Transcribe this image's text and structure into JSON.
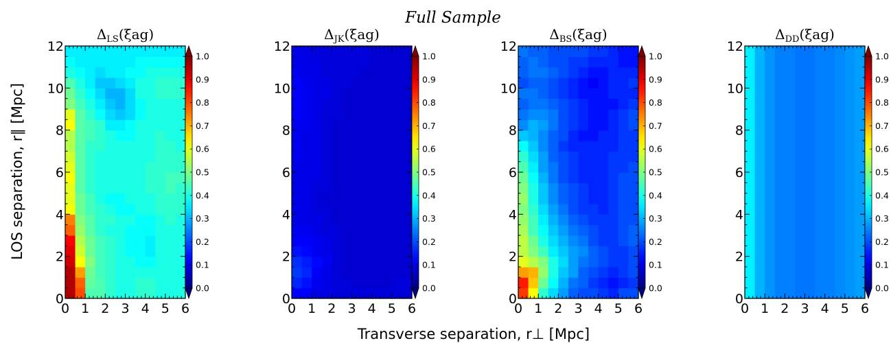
{
  "suptitle": "Full Sample",
  "xlabel": "Transverse separation, r⊥ [Mpc]",
  "ylabel": "LOS separation, r∥ [Mpc]",
  "axis_tick_labels": {
    "x": [
      "0",
      "1",
      "2",
      "3",
      "4",
      "5",
      "6"
    ],
    "y": [
      "0",
      "2",
      "4",
      "6",
      "8",
      "10",
      "12"
    ]
  },
  "colorbar_tick_labels": [
    "0.0",
    "0.1",
    "0.2",
    "0.3",
    "0.4",
    "0.5",
    "0.6",
    "0.7",
    "0.8",
    "0.9",
    "1.0"
  ],
  "colormap": "jet",
  "colors": {
    "jet": [
      "#00007f",
      "#0000ff",
      "#007fff",
      "#00ffff",
      "#7fff7f",
      "#ffff00",
      "#ff7f00",
      "#ff0000",
      "#7f0000"
    ]
  },
  "chart_data": [
    {
      "type": "heatmap",
      "title_main": "Δ",
      "title_sub": "LS",
      "title_arg": "(ξag)",
      "xlim": [
        0,
        6
      ],
      "ylim": [
        0,
        12
      ],
      "vmin": 0.0,
      "vmax": 1.0,
      "colorbar_extend": "both",
      "x_bin_edges": [
        0,
        0.5,
        1,
        1.5,
        2,
        2.5,
        3,
        3.5,
        4,
        4.5,
        5,
        5.5,
        6
      ],
      "y_bin_edges": [
        0,
        0.5,
        1,
        1.5,
        2,
        2.5,
        3,
        3.5,
        4,
        4.5,
        5,
        5.5,
        6,
        6.5,
        7,
        7.5,
        8,
        8.5,
        9,
        9.5,
        10,
        10.5,
        11,
        11.5,
        12
      ],
      "z": [
        [
          0.95,
          0.8,
          0.45,
          0.45,
          0.42,
          0.4,
          0.4,
          0.42,
          0.42,
          0.4,
          0.4,
          0.4
        ],
        [
          0.95,
          0.78,
          0.47,
          0.45,
          0.42,
          0.4,
          0.4,
          0.42,
          0.42,
          0.4,
          0.4,
          0.4
        ],
        [
          0.95,
          0.72,
          0.48,
          0.44,
          0.42,
          0.4,
          0.4,
          0.4,
          0.4,
          0.4,
          0.4,
          0.4
        ],
        [
          0.92,
          0.62,
          0.5,
          0.44,
          0.42,
          0.4,
          0.4,
          0.38,
          0.38,
          0.4,
          0.4,
          0.4
        ],
        [
          0.9,
          0.58,
          0.48,
          0.44,
          0.42,
          0.4,
          0.38,
          0.38,
          0.36,
          0.4,
          0.4,
          0.4
        ],
        [
          0.88,
          0.55,
          0.48,
          0.44,
          0.42,
          0.4,
          0.38,
          0.38,
          0.36,
          0.4,
          0.4,
          0.4
        ],
        [
          0.78,
          0.52,
          0.46,
          0.42,
          0.4,
          0.4,
          0.38,
          0.38,
          0.38,
          0.4,
          0.4,
          0.4
        ],
        [
          0.75,
          0.5,
          0.46,
          0.42,
          0.42,
          0.4,
          0.4,
          0.38,
          0.38,
          0.4,
          0.42,
          0.4
        ],
        [
          0.62,
          0.48,
          0.44,
          0.42,
          0.4,
          0.38,
          0.38,
          0.4,
          0.4,
          0.42,
          0.42,
          0.42
        ],
        [
          0.6,
          0.48,
          0.44,
          0.4,
          0.38,
          0.38,
          0.4,
          0.4,
          0.4,
          0.42,
          0.42,
          0.42
        ],
        [
          0.6,
          0.46,
          0.42,
          0.4,
          0.4,
          0.4,
          0.4,
          0.4,
          0.42,
          0.42,
          0.44,
          0.42
        ],
        [
          0.62,
          0.46,
          0.42,
          0.4,
          0.4,
          0.4,
          0.4,
          0.4,
          0.42,
          0.42,
          0.44,
          0.44
        ],
        [
          0.6,
          0.46,
          0.42,
          0.4,
          0.4,
          0.4,
          0.4,
          0.4,
          0.42,
          0.42,
          0.42,
          0.42
        ],
        [
          0.58,
          0.46,
          0.42,
          0.4,
          0.4,
          0.4,
          0.4,
          0.4,
          0.4,
          0.42,
          0.42,
          0.42
        ],
        [
          0.55,
          0.46,
          0.42,
          0.42,
          0.4,
          0.4,
          0.4,
          0.4,
          0.4,
          0.42,
          0.42,
          0.4
        ],
        [
          0.55,
          0.46,
          0.44,
          0.42,
          0.4,
          0.38,
          0.38,
          0.4,
          0.4,
          0.42,
          0.4,
          0.4
        ],
        [
          0.62,
          0.46,
          0.44,
          0.42,
          0.36,
          0.36,
          0.38,
          0.4,
          0.4,
          0.4,
          0.4,
          0.4
        ],
        [
          0.6,
          0.46,
          0.42,
          0.38,
          0.34,
          0.32,
          0.34,
          0.38,
          0.4,
          0.4,
          0.4,
          0.4
        ],
        [
          0.5,
          0.44,
          0.4,
          0.36,
          0.32,
          0.3,
          0.34,
          0.38,
          0.4,
          0.4,
          0.4,
          0.4
        ],
        [
          0.48,
          0.42,
          0.38,
          0.34,
          0.3,
          0.3,
          0.34,
          0.4,
          0.4,
          0.42,
          0.42,
          0.42
        ],
        [
          0.45,
          0.4,
          0.36,
          0.32,
          0.32,
          0.34,
          0.36,
          0.4,
          0.4,
          0.42,
          0.42,
          0.42
        ],
        [
          0.4,
          0.38,
          0.36,
          0.34,
          0.36,
          0.36,
          0.38,
          0.38,
          0.4,
          0.4,
          0.4,
          0.4
        ],
        [
          0.38,
          0.36,
          0.36,
          0.36,
          0.36,
          0.36,
          0.36,
          0.38,
          0.38,
          0.38,
          0.38,
          0.38
        ],
        [
          0.36,
          0.36,
          0.36,
          0.36,
          0.36,
          0.36,
          0.36,
          0.36,
          0.36,
          0.36,
          0.36,
          0.36
        ]
      ]
    },
    {
      "type": "heatmap",
      "title_main": "Δ",
      "title_sub": "JK",
      "title_arg": "(ξag)",
      "xlim": [
        0,
        6
      ],
      "ylim": [
        0,
        12
      ],
      "vmin": 0.0,
      "vmax": 1.0,
      "colorbar_extend": "both",
      "x_bin_edges": [
        0,
        0.5,
        1,
        1.5,
        2,
        2.5,
        3,
        3.5,
        4,
        4.5,
        5,
        5.5,
        6
      ],
      "y_bin_edges": [
        0,
        0.5,
        1,
        1.5,
        2,
        2.5,
        3,
        3.5,
        4,
        4.5,
        5,
        5.5,
        6,
        6.5,
        7,
        7.5,
        8,
        8.5,
        9,
        9.5,
        10,
        10.5,
        11,
        11.5,
        12
      ],
      "z": [
        [
          0.12,
          0.12,
          0.1,
          0.1,
          0.09,
          0.09,
          0.09,
          0.09,
          0.09,
          0.09,
          0.09,
          0.09
        ],
        [
          0.16,
          0.14,
          0.11,
          0.1,
          0.09,
          0.09,
          0.08,
          0.08,
          0.08,
          0.08,
          0.09,
          0.09
        ],
        [
          0.18,
          0.16,
          0.12,
          0.1,
          0.09,
          0.08,
          0.08,
          0.08,
          0.08,
          0.08,
          0.08,
          0.08
        ],
        [
          0.17,
          0.15,
          0.13,
          0.11,
          0.09,
          0.08,
          0.08,
          0.08,
          0.08,
          0.08,
          0.08,
          0.08
        ],
        [
          0.14,
          0.13,
          0.11,
          0.1,
          0.09,
          0.08,
          0.08,
          0.08,
          0.08,
          0.08,
          0.08,
          0.08
        ],
        [
          0.12,
          0.12,
          0.11,
          0.1,
          0.09,
          0.08,
          0.08,
          0.08,
          0.08,
          0.08,
          0.08,
          0.08
        ],
        [
          0.11,
          0.11,
          0.1,
          0.09,
          0.09,
          0.08,
          0.08,
          0.08,
          0.08,
          0.08,
          0.08,
          0.08
        ],
        [
          0.1,
          0.1,
          0.1,
          0.09,
          0.08,
          0.08,
          0.08,
          0.08,
          0.08,
          0.08,
          0.08,
          0.08
        ],
        [
          0.1,
          0.1,
          0.09,
          0.09,
          0.08,
          0.08,
          0.08,
          0.08,
          0.08,
          0.08,
          0.08,
          0.08
        ],
        [
          0.1,
          0.1,
          0.09,
          0.08,
          0.08,
          0.08,
          0.08,
          0.08,
          0.08,
          0.08,
          0.08,
          0.08
        ],
        [
          0.1,
          0.1,
          0.09,
          0.09,
          0.08,
          0.08,
          0.08,
          0.08,
          0.08,
          0.08,
          0.08,
          0.08
        ],
        [
          0.1,
          0.1,
          0.1,
          0.09,
          0.08,
          0.08,
          0.08,
          0.08,
          0.08,
          0.08,
          0.08,
          0.08
        ],
        [
          0.1,
          0.1,
          0.1,
          0.09,
          0.08,
          0.08,
          0.08,
          0.08,
          0.08,
          0.08,
          0.08,
          0.08
        ],
        [
          0.11,
          0.1,
          0.1,
          0.09,
          0.08,
          0.08,
          0.08,
          0.08,
          0.08,
          0.08,
          0.08,
          0.08
        ],
        [
          0.11,
          0.1,
          0.1,
          0.09,
          0.08,
          0.08,
          0.08,
          0.08,
          0.08,
          0.08,
          0.08,
          0.08
        ],
        [
          0.11,
          0.1,
          0.1,
          0.09,
          0.08,
          0.08,
          0.08,
          0.08,
          0.08,
          0.08,
          0.08,
          0.08
        ],
        [
          0.11,
          0.11,
          0.1,
          0.09,
          0.08,
          0.08,
          0.08,
          0.08,
          0.08,
          0.08,
          0.08,
          0.08
        ],
        [
          0.12,
          0.11,
          0.1,
          0.09,
          0.09,
          0.08,
          0.08,
          0.08,
          0.08,
          0.08,
          0.08,
          0.08
        ],
        [
          0.12,
          0.11,
          0.1,
          0.09,
          0.09,
          0.08,
          0.08,
          0.08,
          0.08,
          0.08,
          0.08,
          0.08
        ],
        [
          0.12,
          0.11,
          0.1,
          0.1,
          0.09,
          0.08,
          0.08,
          0.08,
          0.08,
          0.08,
          0.08,
          0.08
        ],
        [
          0.12,
          0.11,
          0.1,
          0.1,
          0.09,
          0.09,
          0.08,
          0.08,
          0.08,
          0.08,
          0.08,
          0.08
        ],
        [
          0.11,
          0.1,
          0.1,
          0.09,
          0.09,
          0.09,
          0.09,
          0.08,
          0.08,
          0.08,
          0.08,
          0.08
        ],
        [
          0.1,
          0.1,
          0.1,
          0.09,
          0.09,
          0.09,
          0.09,
          0.09,
          0.08,
          0.08,
          0.08,
          0.08
        ],
        [
          0.1,
          0.1,
          0.09,
          0.09,
          0.09,
          0.09,
          0.09,
          0.09,
          0.08,
          0.08,
          0.08,
          0.08
        ]
      ]
    },
    {
      "type": "heatmap",
      "title_main": "Δ",
      "title_sub": "BS",
      "title_arg": "(ξag)",
      "xlim": [
        0,
        6
      ],
      "ylim": [
        0,
        12
      ],
      "vmin": 0.0,
      "vmax": 1.0,
      "colorbar_extend": "both",
      "x_bin_edges": [
        0,
        0.5,
        1,
        1.5,
        2,
        2.5,
        3,
        3.5,
        4,
        4.5,
        5,
        5.5,
        6
      ],
      "y_bin_edges": [
        0,
        0.5,
        1,
        1.5,
        2,
        2.5,
        3,
        3.5,
        4,
        4.5,
        5,
        5.5,
        6,
        6.5,
        7,
        7.5,
        8,
        8.5,
        9,
        9.5,
        10,
        10.5,
        11,
        11.5,
        12
      ],
      "z": [
        [
          0.82,
          0.62,
          0.42,
          0.34,
          0.28,
          0.22,
          0.2,
          0.2,
          0.18,
          0.16,
          0.2,
          0.2
        ],
        [
          0.85,
          0.68,
          0.48,
          0.38,
          0.3,
          0.24,
          0.22,
          0.18,
          0.16,
          0.14,
          0.16,
          0.18
        ],
        [
          0.72,
          0.7,
          0.52,
          0.4,
          0.32,
          0.28,
          0.22,
          0.2,
          0.18,
          0.16,
          0.18,
          0.2
        ],
        [
          0.6,
          0.55,
          0.5,
          0.4,
          0.34,
          0.28,
          0.24,
          0.22,
          0.2,
          0.18,
          0.18,
          0.2
        ],
        [
          0.56,
          0.5,
          0.44,
          0.36,
          0.32,
          0.28,
          0.26,
          0.22,
          0.2,
          0.18,
          0.18,
          0.2
        ],
        [
          0.56,
          0.48,
          0.4,
          0.34,
          0.3,
          0.26,
          0.24,
          0.2,
          0.18,
          0.18,
          0.2,
          0.22
        ],
        [
          0.54,
          0.44,
          0.38,
          0.32,
          0.28,
          0.24,
          0.22,
          0.2,
          0.18,
          0.18,
          0.2,
          0.22
        ],
        [
          0.52,
          0.44,
          0.36,
          0.3,
          0.26,
          0.22,
          0.2,
          0.18,
          0.18,
          0.18,
          0.2,
          0.2
        ],
        [
          0.5,
          0.42,
          0.34,
          0.28,
          0.24,
          0.2,
          0.18,
          0.18,
          0.16,
          0.18,
          0.2,
          0.2
        ],
        [
          0.52,
          0.4,
          0.32,
          0.26,
          0.22,
          0.2,
          0.18,
          0.16,
          0.16,
          0.18,
          0.2,
          0.2
        ],
        [
          0.5,
          0.4,
          0.32,
          0.26,
          0.22,
          0.2,
          0.18,
          0.16,
          0.16,
          0.18,
          0.2,
          0.2
        ],
        [
          0.48,
          0.38,
          0.3,
          0.24,
          0.2,
          0.18,
          0.16,
          0.16,
          0.16,
          0.18,
          0.2,
          0.2
        ],
        [
          0.45,
          0.36,
          0.28,
          0.24,
          0.2,
          0.18,
          0.16,
          0.16,
          0.16,
          0.18,
          0.18,
          0.2
        ],
        [
          0.42,
          0.34,
          0.28,
          0.22,
          0.2,
          0.18,
          0.16,
          0.16,
          0.16,
          0.18,
          0.18,
          0.18
        ],
        [
          0.38,
          0.32,
          0.26,
          0.22,
          0.18,
          0.16,
          0.16,
          0.16,
          0.16,
          0.16,
          0.18,
          0.18
        ],
        [
          0.32,
          0.3,
          0.26,
          0.22,
          0.2,
          0.16,
          0.14,
          0.14,
          0.16,
          0.16,
          0.18,
          0.18
        ],
        [
          0.26,
          0.3,
          0.28,
          0.24,
          0.2,
          0.18,
          0.16,
          0.14,
          0.14,
          0.16,
          0.18,
          0.2
        ],
        [
          0.24,
          0.26,
          0.26,
          0.24,
          0.2,
          0.18,
          0.16,
          0.14,
          0.14,
          0.16,
          0.18,
          0.2
        ],
        [
          0.22,
          0.24,
          0.24,
          0.22,
          0.2,
          0.18,
          0.16,
          0.14,
          0.14,
          0.14,
          0.16,
          0.18
        ],
        [
          0.24,
          0.24,
          0.22,
          0.2,
          0.18,
          0.16,
          0.14,
          0.14,
          0.14,
          0.16,
          0.16,
          0.16
        ],
        [
          0.2,
          0.22,
          0.22,
          0.2,
          0.18,
          0.16,
          0.14,
          0.12,
          0.14,
          0.16,
          0.16,
          0.18
        ],
        [
          0.22,
          0.24,
          0.24,
          0.22,
          0.2,
          0.18,
          0.16,
          0.14,
          0.14,
          0.16,
          0.16,
          0.16
        ],
        [
          0.22,
          0.24,
          0.22,
          0.2,
          0.2,
          0.18,
          0.18,
          0.16,
          0.16,
          0.16,
          0.14,
          0.14
        ],
        [
          0.24,
          0.22,
          0.22,
          0.2,
          0.2,
          0.2,
          0.2,
          0.18,
          0.18,
          0.16,
          0.14,
          0.14
        ]
      ]
    },
    {
      "type": "heatmap",
      "title_main": "Δ",
      "title_sub": "DD",
      "title_arg": "(ξag)",
      "xlim": [
        0,
        6
      ],
      "ylim": [
        0,
        12
      ],
      "vmin": 0.0,
      "vmax": 1.0,
      "colorbar_extend": "both",
      "x_bin_edges": [
        0,
        0.5,
        1,
        1.5,
        2,
        2.5,
        3,
        3.5,
        4,
        4.5,
        5,
        5.5,
        6
      ],
      "y_bin_edges": [
        0,
        0.5,
        1,
        1.5,
        2,
        2.5,
        3,
        3.5,
        4,
        4.5,
        5,
        5.5,
        6,
        6.5,
        7,
        7.5,
        8,
        8.5,
        9,
        9.5,
        10,
        10.5,
        11,
        11.5,
        12
      ],
      "column_profile": [
        0.36,
        0.3,
        0.27,
        0.25,
        0.25,
        0.24,
        0.24,
        0.25,
        0.25,
        0.26,
        0.27,
        0.28
      ],
      "z_note_constant_along_y": true
    }
  ]
}
